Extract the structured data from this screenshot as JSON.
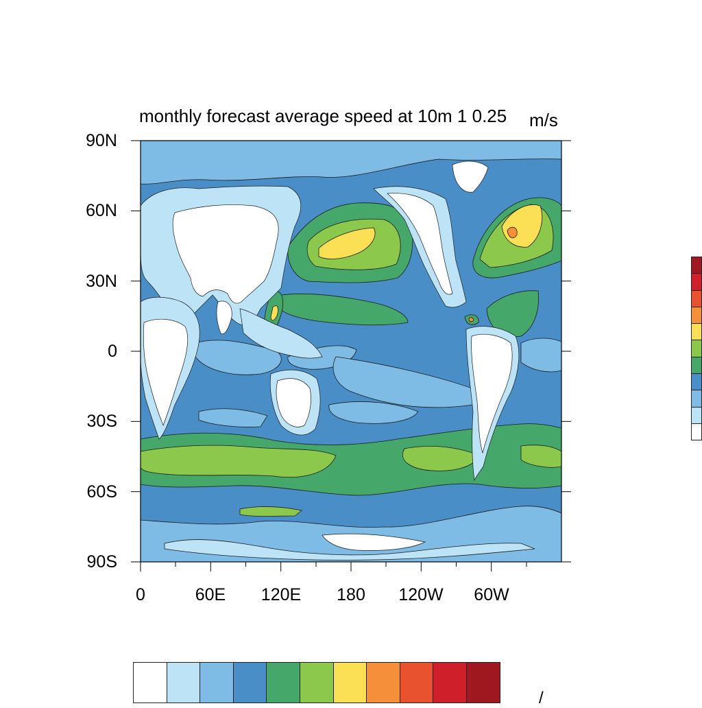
{
  "title": "monthly forecast average speed at 10m 1 0.25",
  "units": "m/s",
  "lat_labels": [
    "90N",
    "60N",
    "30N",
    "0",
    "30S",
    "60S",
    "90S"
  ],
  "lon_labels": [
    "0",
    "60E",
    "120E",
    "180",
    "120W",
    "60W"
  ],
  "palette": [
    "#ffffff",
    "#bde4f6",
    "#7fbce5",
    "#4a8ec8",
    "#45a86a",
    "#8cc84b",
    "#fbe055",
    "#f68f3a",
    "#e8522f",
    "#cf1f2b",
    "#a0181f"
  ],
  "colorbar_units_fragment": "/",
  "chart_data": {
    "type": "heatmap",
    "title": "monthly forecast average speed at 10m 1 0.25",
    "units": "m/s",
    "x_ticks": [
      "0",
      "60E",
      "120E",
      "180",
      "120W",
      "60W"
    ],
    "y_ticks": [
      "90N",
      "60N",
      "30N",
      "0",
      "30S",
      "60S",
      "90S"
    ],
    "xlim": [
      0,
      360
    ],
    "ylim": [
      -90,
      90
    ],
    "levels": 11
  }
}
